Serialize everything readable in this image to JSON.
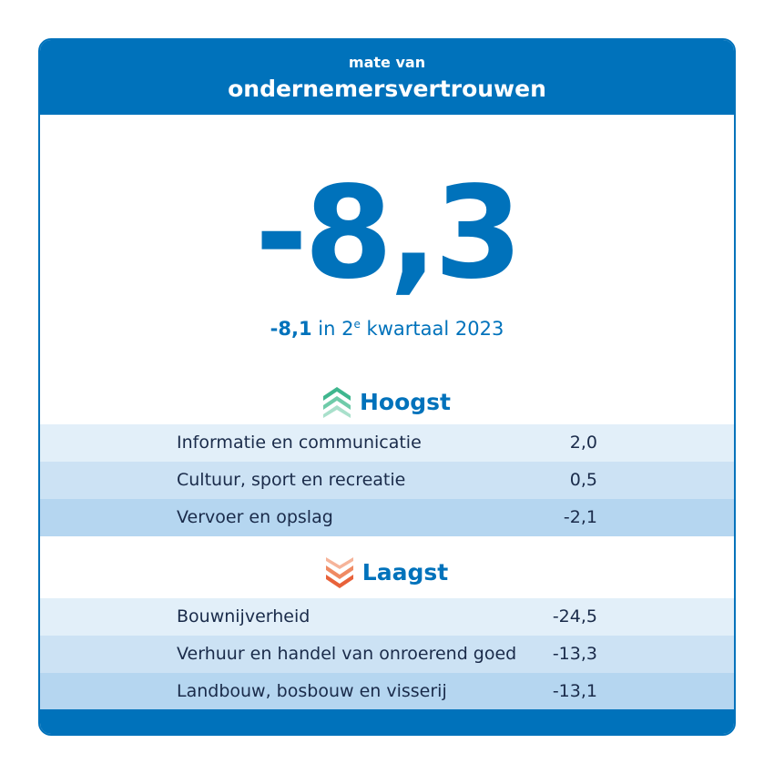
{
  "header": {
    "subtitle": "mate van",
    "title": "ondernemersvertrouwen"
  },
  "main": {
    "value": "-8,3",
    "previous": {
      "value": "-8,1",
      "text_before": "in 2",
      "superscript": "e",
      "text_after": "kwartaal 2023"
    }
  },
  "highest": {
    "title": "Hoogst",
    "icon": "chevrons-up-icon",
    "color": "#3fb68e",
    "rows": [
      {
        "label": "Informatie en communicatie",
        "value": "2,0"
      },
      {
        "label": "Cultuur, sport en recreatie",
        "value": "0,5"
      },
      {
        "label": "Vervoer en opslag",
        "value": "-2,1"
      }
    ]
  },
  "lowest": {
    "title": "Laagst",
    "icon": "chevrons-down-icon",
    "color": "#e8623a",
    "rows": [
      {
        "label": "Bouwnijverheid",
        "value": "-24,5"
      },
      {
        "label": "Verhuur en handel van onroerend goed",
        "value": "-13,3"
      },
      {
        "label": "Landbouw, bosbouw en visserij",
        "value": "-13,1"
      }
    ]
  },
  "colors": {
    "brand": "#0072bb",
    "row_light": "#e2eff9",
    "row_mid": "#cce2f4",
    "row_dark": "#b5d6f0"
  }
}
